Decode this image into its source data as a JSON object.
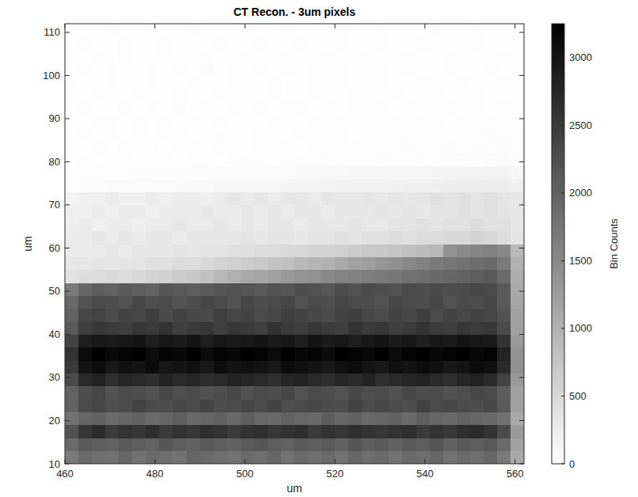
{
  "chart_data": {
    "type": "heatmap",
    "title": "CT Recon. - 3um pixels",
    "x_label": "um",
    "y_label": "um",
    "colorbar_label": "Bin Counts",
    "xlim": [
      460,
      562
    ],
    "ylim": [
      10,
      112
    ],
    "xticks": [
      460,
      480,
      500,
      520,
      540,
      560
    ],
    "yticks": [
      10,
      20,
      30,
      40,
      50,
      60,
      70,
      80,
      90,
      100,
      110
    ],
    "x_edges": [
      460,
      463,
      466,
      469,
      472,
      475,
      478,
      481,
      484,
      487,
      490,
      493,
      496,
      499,
      502,
      505,
      508,
      511,
      514,
      517,
      520,
      523,
      526,
      529,
      532,
      535,
      538,
      541,
      544,
      547,
      550,
      553,
      556,
      559,
      562
    ],
    "y_edges": [
      10,
      13,
      16,
      19,
      22,
      25,
      28,
      31,
      34,
      37,
      40,
      43,
      46,
      49,
      52,
      55,
      58,
      61,
      64,
      67,
      70,
      73,
      76,
      79,
      82,
      85,
      88,
      91,
      94,
      97,
      100,
      103,
      106,
      109,
      112
    ],
    "color": "gray_reversed",
    "clim": [
      0,
      3250
    ],
    "cticks": [
      0,
      500,
      1000,
      1500,
      2000,
      2500,
      3000
    ],
    "values": [
      [
        1700,
        1900,
        1850,
        1800,
        1950,
        1800,
        1900,
        1850,
        1800,
        1950,
        1900,
        1850,
        1800,
        1900,
        1850,
        1950,
        1800,
        1900,
        1850,
        1900,
        1800,
        1950,
        1850,
        1900,
        1800,
        1900,
        1850,
        1950,
        1800,
        1900,
        1850,
        1950,
        1700,
        1100
      ],
      [
        1900,
        2100,
        2050,
        2000,
        2100,
        2050,
        2000,
        2150,
        2050,
        2000,
        2100,
        2050,
        2000,
        2100,
        2150,
        2050,
        2000,
        2100,
        2050,
        2100,
        2000,
        2150,
        2050,
        2100,
        2000,
        2100,
        2050,
        2150,
        2000,
        2100,
        2050,
        2100,
        1900,
        1200
      ],
      [
        2200,
        2550,
        2700,
        2500,
        2600,
        2550,
        2650,
        2500,
        2600,
        2550,
        2650,
        2600,
        2500,
        2600,
        2650,
        2550,
        2600,
        2650,
        2500,
        2600,
        2550,
        2650,
        2600,
        2550,
        2600,
        2650,
        2500,
        2600,
        2550,
        2650,
        2700,
        2600,
        2300,
        1300
      ],
      [
        1800,
        1950,
        2000,
        1900,
        1950,
        2000,
        1900,
        1950,
        2050,
        1900,
        1950,
        2000,
        1900,
        2050,
        1950,
        1900,
        2000,
        1950,
        1900,
        2050,
        1950,
        2000,
        1900,
        1950,
        2000,
        1900,
        2050,
        1950,
        1900,
        2000,
        1950,
        1900,
        1800,
        1100
      ],
      [
        2000,
        2300,
        2350,
        2250,
        2300,
        2400,
        2300,
        2250,
        2350,
        2300,
        2400,
        2250,
        2300,
        2350,
        2300,
        2400,
        2250,
        2300,
        2350,
        2300,
        2250,
        2400,
        2300,
        2350,
        2300,
        2250,
        2400,
        2300,
        2350,
        2300,
        2250,
        2350,
        2100,
        1200
      ],
      [
        2000,
        2250,
        2350,
        2200,
        2300,
        2250,
        2200,
        2350,
        2250,
        2300,
        2200,
        2250,
        2350,
        2200,
        2300,
        2250,
        2350,
        2200,
        2300,
        2250,
        2200,
        2350,
        2250,
        2300,
        2200,
        2350,
        2250,
        2300,
        2200,
        2250,
        2350,
        2300,
        2050,
        1200
      ],
      [
        2300,
        2700,
        2800,
        2650,
        2750,
        2700,
        2650,
        2800,
        2700,
        2750,
        2650,
        2700,
        2800,
        2750,
        2700,
        2650,
        2750,
        2800,
        2700,
        2650,
        2750,
        2700,
        2800,
        2650,
        2700,
        2750,
        2800,
        2700,
        2650,
        2750,
        2800,
        2700,
        2400,
        1300
      ],
      [
        2500,
        3000,
        3100,
        2950,
        3050,
        3000,
        3100,
        2950,
        3000,
        3050,
        2950,
        3100,
        3000,
        3050,
        3000,
        2950,
        3100,
        3050,
        3000,
        2950,
        3050,
        3100,
        3000,
        2950,
        3050,
        3000,
        3100,
        3050,
        2950,
        3000,
        3100,
        3050,
        2700,
        1400
      ],
      [
        2600,
        3100,
        3250,
        3150,
        3200,
        3250,
        3100,
        3200,
        3150,
        3250,
        3100,
        3200,
        3150,
        3250,
        3200,
        3100,
        3250,
        3150,
        3200,
        3100,
        3250,
        3200,
        3150,
        3250,
        3100,
        3200,
        3250,
        3150,
        3200,
        3250,
        3150,
        3200,
        2800,
        1400
      ],
      [
        2400,
        2850,
        2950,
        2900,
        2950,
        3000,
        2850,
        2950,
        2900,
        3000,
        2850,
        2950,
        2900,
        2950,
        3000,
        2900,
        2950,
        2850,
        3000,
        2900,
        2950,
        2850,
        2950,
        3000,
        2900,
        2950,
        2850,
        2950,
        2900,
        3000,
        2950,
        2900,
        2600,
        1300
      ],
      [
        2100,
        2450,
        2550,
        2500,
        2450,
        2550,
        2500,
        2600,
        2450,
        2500,
        2550,
        2450,
        2550,
        2500,
        2450,
        2600,
        2500,
        2450,
        2550,
        2500,
        2450,
        2600,
        2500,
        2550,
        2450,
        2500,
        2600,
        2500,
        2450,
        2550,
        2500,
        2550,
        2300,
        1200
      ],
      [
        2000,
        2350,
        2400,
        2300,
        2400,
        2350,
        2450,
        2300,
        2400,
        2350,
        2300,
        2450,
        2350,
        2400,
        2300,
        2350,
        2450,
        2400,
        2350,
        2300,
        2400,
        2450,
        2350,
        2300,
        2400,
        2350,
        2450,
        2300,
        2400,
        2350,
        2400,
        2350,
        2200,
        1200
      ],
      [
        1900,
        2200,
        2300,
        2250,
        2200,
        2350,
        2250,
        2300,
        2200,
        2250,
        2350,
        2300,
        2200,
        2350,
        2250,
        2300,
        2350,
        2200,
        2300,
        2250,
        2350,
        2300,
        2250,
        2200,
        2350,
        2300,
        2250,
        2350,
        2200,
        2300,
        2250,
        2350,
        2100,
        1150
      ],
      [
        1700,
        1950,
        2050,
        2000,
        2100,
        2050,
        2000,
        2150,
        2100,
        2050,
        2100,
        2150,
        2200,
        2150,
        2100,
        2200,
        2150,
        2250,
        2200,
        2150,
        2250,
        2200,
        2300,
        2250,
        2200,
        2300,
        2250,
        2300,
        2250,
        2300,
        2350,
        2300,
        2100,
        1100
      ],
      [
        400,
        450,
        450,
        500,
        450,
        500,
        550,
        600,
        650,
        700,
        800,
        900,
        1000,
        1100,
        1150,
        1200,
        1300,
        1350,
        1400,
        1500,
        1550,
        1600,
        1650,
        1700,
        1750,
        1800,
        1850,
        1900,
        1950,
        2000,
        2050,
        2100,
        1900,
        1050
      ],
      [
        300,
        300,
        350,
        300,
        350,
        350,
        400,
        400,
        450,
        450,
        500,
        550,
        600,
        650,
        700,
        750,
        800,
        900,
        950,
        1000,
        1100,
        1200,
        1250,
        1350,
        1400,
        1500,
        1600,
        1700,
        1750,
        1800,
        1850,
        1900,
        1700,
        1000
      ],
      [
        250,
        250,
        250,
        300,
        250,
        300,
        300,
        300,
        350,
        300,
        350,
        350,
        400,
        400,
        450,
        450,
        500,
        500,
        550,
        550,
        600,
        650,
        700,
        700,
        750,
        800,
        850,
        900,
        1400,
        1500,
        1550,
        1600,
        1500,
        900
      ],
      [
        250,
        250,
        300,
        250,
        300,
        250,
        300,
        300,
        250,
        300,
        300,
        300,
        300,
        350,
        300,
        350,
        350,
        300,
        350,
        350,
        400,
        350,
        400,
        400,
        450,
        400,
        450,
        450,
        500,
        500,
        550,
        500,
        450,
        350
      ],
      [
        200,
        250,
        200,
        250,
        250,
        200,
        250,
        250,
        300,
        250,
        250,
        300,
        250,
        300,
        250,
        300,
        300,
        250,
        300,
        300,
        300,
        350,
        300,
        300,
        350,
        350,
        400,
        350,
        400,
        400,
        450,
        400,
        400,
        300
      ],
      [
        200,
        200,
        250,
        200,
        250,
        250,
        200,
        250,
        250,
        250,
        300,
        250,
        250,
        300,
        250,
        300,
        250,
        300,
        300,
        250,
        300,
        300,
        300,
        350,
        300,
        350,
        300,
        350,
        350,
        400,
        350,
        400,
        350,
        300
      ],
      [
        150,
        200,
        200,
        250,
        200,
        200,
        250,
        200,
        250,
        250,
        200,
        250,
        300,
        250,
        300,
        250,
        300,
        300,
        250,
        350,
        300,
        300,
        350,
        300,
        350,
        300,
        350,
        400,
        350,
        400,
        350,
        400,
        350,
        300
      ],
      [
        30,
        40,
        50,
        60,
        60,
        70,
        70,
        80,
        80,
        90,
        90,
        100,
        100,
        110,
        120,
        120,
        130,
        140,
        140,
        150,
        160,
        170,
        170,
        180,
        190,
        200,
        200,
        210,
        220,
        230,
        230,
        240,
        240,
        200
      ],
      [
        20,
        20,
        30,
        30,
        30,
        40,
        40,
        40,
        50,
        50,
        50,
        60,
        60,
        60,
        70,
        70,
        70,
        80,
        80,
        90,
        90,
        100,
        100,
        110,
        110,
        120,
        120,
        130,
        130,
        140,
        140,
        150,
        150,
        120
      ],
      [
        10,
        20,
        10,
        20,
        30,
        10,
        20,
        20,
        10,
        30,
        20,
        10,
        20,
        30,
        20,
        10,
        20,
        30,
        20,
        40,
        20,
        30,
        20,
        40,
        30,
        20,
        40,
        30,
        40,
        50,
        40,
        50,
        60,
        40
      ],
      [
        20,
        10,
        20,
        10,
        20,
        30,
        20,
        10,
        30,
        20,
        10,
        20,
        20,
        10,
        30,
        20,
        20,
        10,
        20,
        30,
        20,
        20,
        30,
        20,
        30,
        40,
        20,
        30,
        40,
        30,
        40,
        30,
        50,
        30
      ],
      [
        10,
        20,
        10,
        30,
        10,
        20,
        10,
        20,
        20,
        10,
        20,
        40,
        20,
        10,
        20,
        20,
        10,
        20,
        30,
        20,
        20,
        10,
        20,
        30,
        20,
        20,
        30,
        20,
        30,
        20,
        30,
        40,
        30,
        20
      ],
      [
        20,
        10,
        20,
        20,
        10,
        20,
        10,
        30,
        10,
        20,
        10,
        20,
        10,
        20,
        10,
        30,
        20,
        10,
        20,
        20,
        30,
        20,
        10,
        20,
        20,
        30,
        20,
        20,
        10,
        20,
        30,
        20,
        20,
        20
      ],
      [
        10,
        20,
        10,
        10,
        20,
        10,
        20,
        10,
        40,
        10,
        20,
        10,
        20,
        10,
        20,
        10,
        20,
        30,
        10,
        20,
        10,
        20,
        10,
        20,
        10,
        20,
        10,
        20,
        20,
        10,
        20,
        10,
        20,
        10
      ],
      [
        10,
        10,
        20,
        10,
        10,
        20,
        10,
        10,
        20,
        10,
        10,
        20,
        30,
        10,
        10,
        20,
        10,
        10,
        20,
        10,
        10,
        30,
        10,
        10,
        20,
        10,
        10,
        20,
        10,
        10,
        20,
        10,
        10,
        10
      ],
      [
        20,
        10,
        10,
        20,
        10,
        10,
        30,
        10,
        10,
        20,
        10,
        10,
        20,
        10,
        10,
        20,
        10,
        10,
        20,
        10,
        30,
        10,
        10,
        20,
        10,
        10,
        20,
        10,
        10,
        20,
        10,
        10,
        20,
        10
      ],
      [
        10,
        20,
        10,
        20,
        10,
        10,
        20,
        10,
        20,
        10,
        40,
        10,
        20,
        10,
        20,
        10,
        20,
        10,
        30,
        10,
        20,
        10,
        10,
        20,
        10,
        20,
        10,
        10,
        20,
        10,
        10,
        20,
        10,
        10
      ],
      [
        10,
        10,
        20,
        10,
        30,
        10,
        10,
        20,
        10,
        10,
        20,
        10,
        10,
        20,
        10,
        10,
        30,
        10,
        10,
        20,
        10,
        10,
        20,
        10,
        10,
        20,
        10,
        10,
        20,
        10,
        10,
        10,
        20,
        10
      ],
      [
        10,
        20,
        10,
        10,
        20,
        10,
        10,
        20,
        10,
        10,
        10,
        20,
        10,
        10,
        20,
        10,
        10,
        20,
        10,
        10,
        20,
        10,
        10,
        20,
        10,
        10,
        20,
        10,
        10,
        10,
        20,
        10,
        10,
        10
      ],
      [
        10,
        10,
        10,
        20,
        10,
        10,
        20,
        10,
        10,
        20,
        10,
        10,
        10,
        20,
        10,
        10,
        20,
        10,
        10,
        10,
        20,
        10,
        10,
        20,
        10,
        10,
        10,
        20,
        10,
        10,
        20,
        10,
        10,
        10
      ]
    ]
  }
}
